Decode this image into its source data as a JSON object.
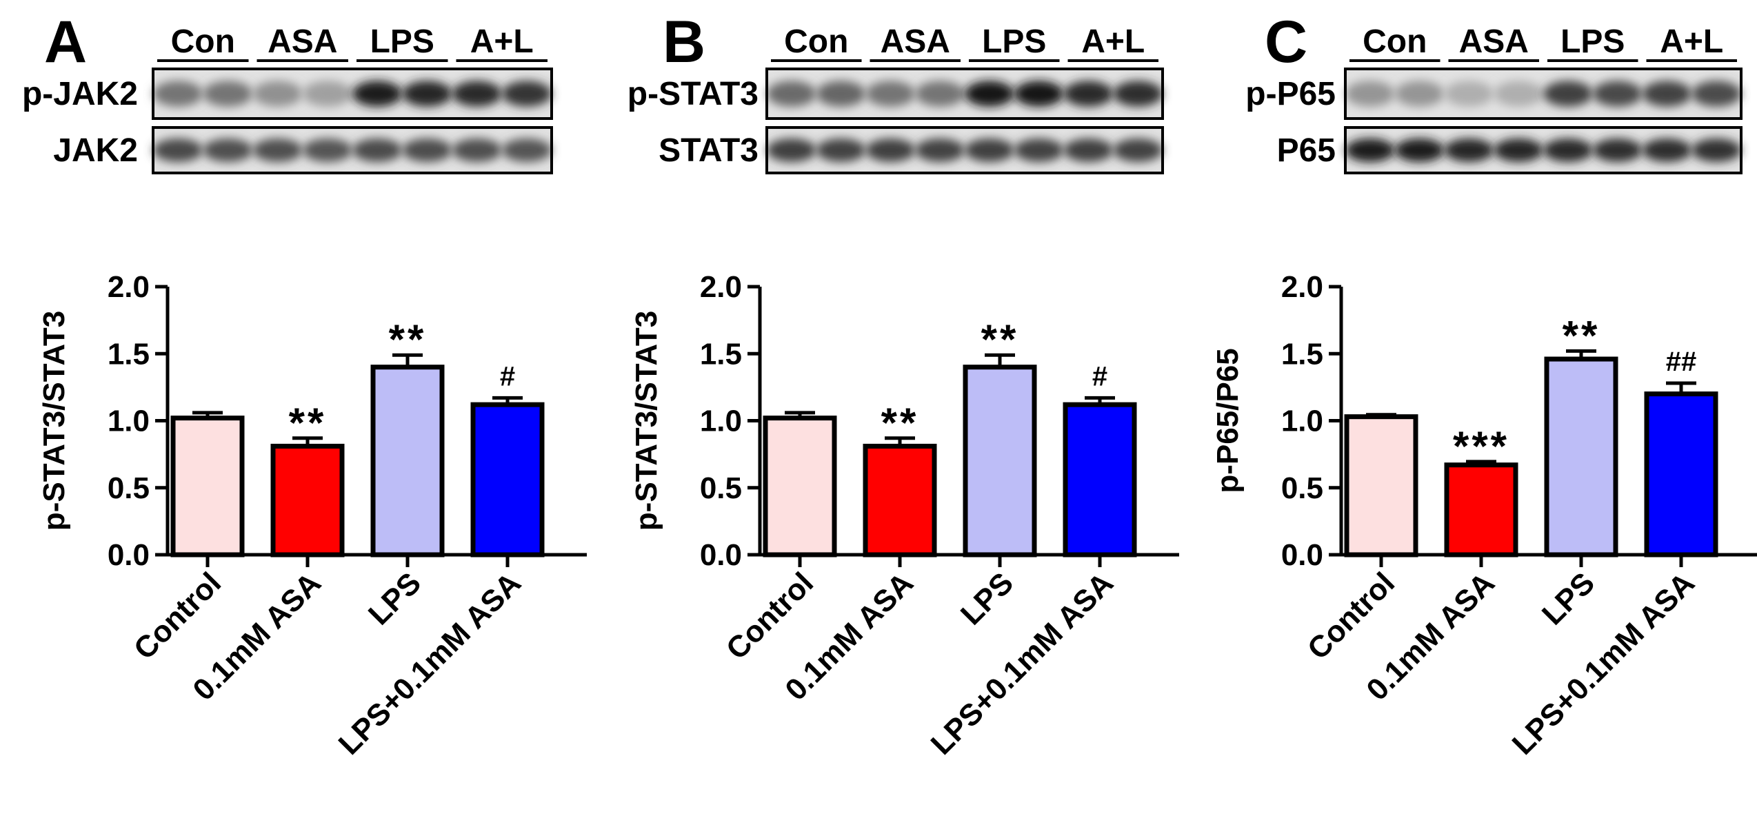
{
  "chart_data": [
    {
      "panel_letter": "A",
      "type": "bar",
      "blot": {
        "groups": [
          "Con",
          "ASA",
          "LPS",
          "A+L"
        ],
        "rows": [
          {
            "label": "p-JAK2",
            "intensity": [
              0.55,
              0.55,
              0.42,
              0.35,
              0.95,
              0.92,
              0.9,
              0.85
            ]
          },
          {
            "label": "JAK2",
            "intensity": [
              0.75,
              0.72,
              0.72,
              0.7,
              0.74,
              0.73,
              0.72,
              0.7
            ]
          }
        ]
      },
      "categories": [
        "Control",
        "0.1mM ASA",
        "LPS",
        "LPS+0.1mM ASA"
      ],
      "values": [
        1.02,
        0.81,
        1.4,
        1.12
      ],
      "errors": [
        0.04,
        0.06,
        0.09,
        0.05
      ],
      "significance": [
        "",
        "**",
        "**",
        "#"
      ],
      "colors": [
        "#fde0e0",
        "#ff0000",
        "#bdbdf7",
        "#0000ff"
      ],
      "ylabel": "p-STAT3/STAT3",
      "ylim": [
        0,
        2.0
      ],
      "yticks": [
        "0.0",
        "0.5",
        "1.0",
        "1.5",
        "2.0"
      ]
    },
    {
      "panel_letter": "B",
      "type": "bar",
      "blot": {
        "groups": [
          "Con",
          "ASA",
          "LPS",
          "A+L"
        ],
        "rows": [
          {
            "label": "p-STAT3",
            "intensity": [
              0.6,
              0.62,
              0.55,
              0.55,
              0.98,
              1.0,
              0.9,
              0.88
            ]
          },
          {
            "label": "STAT3",
            "intensity": [
              0.8,
              0.78,
              0.8,
              0.78,
              0.8,
              0.78,
              0.8,
              0.78
            ]
          }
        ]
      },
      "categories": [
        "Control",
        "0.1mM ASA",
        "LPS",
        "LPS+0.1mM ASA"
      ],
      "values": [
        1.02,
        0.81,
        1.4,
        1.12
      ],
      "errors": [
        0.04,
        0.06,
        0.09,
        0.05
      ],
      "significance": [
        "",
        "**",
        "**",
        "#"
      ],
      "colors": [
        "#fde0e0",
        "#ff0000",
        "#bdbdf7",
        "#0000ff"
      ],
      "ylabel": "p-STAT3/STAT3",
      "ylim": [
        0,
        2.0
      ],
      "yticks": [
        "0.0",
        "0.5",
        "1.0",
        "1.5",
        "2.0"
      ]
    },
    {
      "panel_letter": "C",
      "type": "bar",
      "blot": {
        "groups": [
          "Con",
          "ASA",
          "LPS",
          "A+L"
        ],
        "rows": [
          {
            "label": "p-P65",
            "intensity": [
              0.4,
              0.4,
              0.28,
              0.28,
              0.8,
              0.75,
              0.78,
              0.74
            ]
          },
          {
            "label": "P65",
            "intensity": [
              0.95,
              0.95,
              0.92,
              0.92,
              0.9,
              0.88,
              0.88,
              0.86
            ]
          }
        ]
      },
      "categories": [
        "Control",
        "0.1mM ASA",
        "LPS",
        "LPS+0.1mM ASA"
      ],
      "values": [
        1.03,
        0.67,
        1.46,
        1.2
      ],
      "errors": [
        0.015,
        0.025,
        0.06,
        0.08
      ],
      "significance": [
        "",
        "***",
        "**",
        "##"
      ],
      "colors": [
        "#fde0e0",
        "#ff0000",
        "#bdbdf7",
        "#0000ff"
      ],
      "ylabel": "p-P65/P65",
      "ylim": [
        0,
        2.0
      ],
      "yticks": [
        "0.0",
        "0.5",
        "1.0",
        "1.5",
        "2.0"
      ]
    }
  ]
}
